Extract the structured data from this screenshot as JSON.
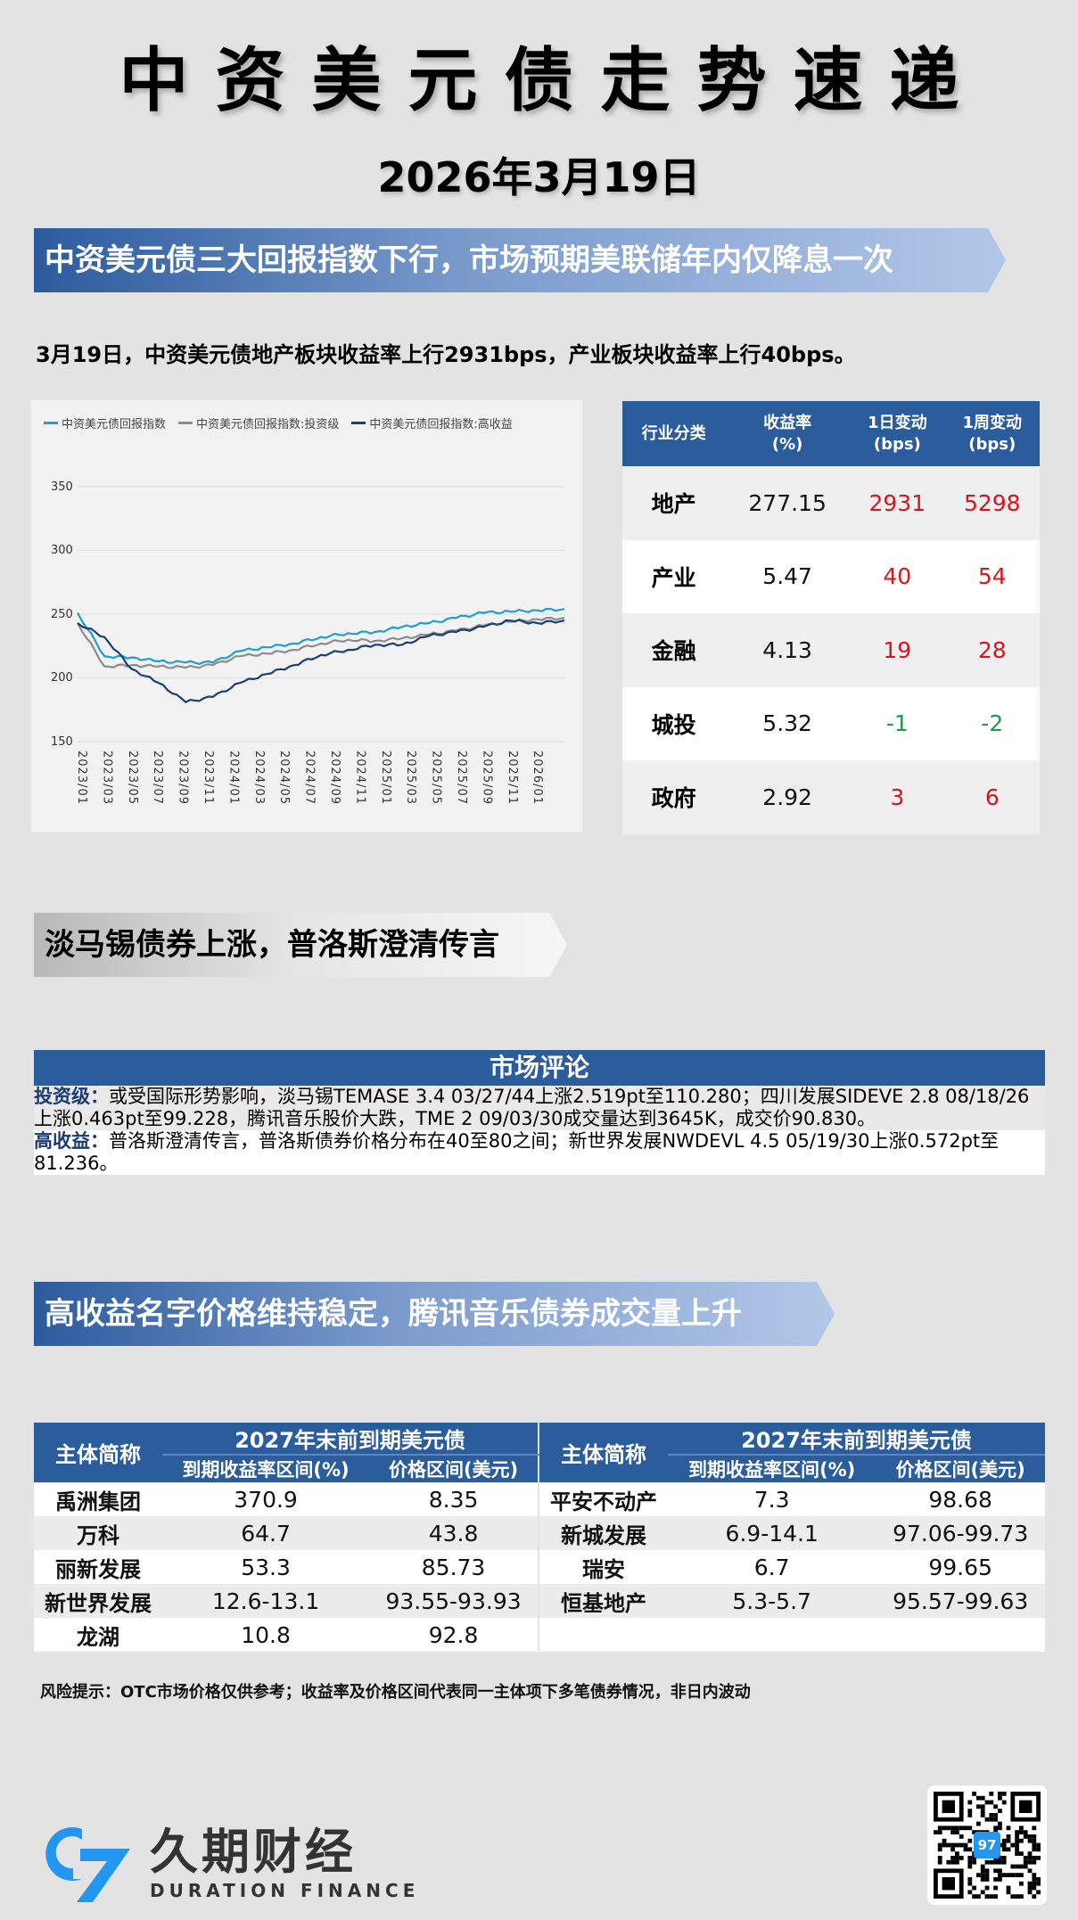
{
  "header": {
    "title": "中资美元债走势速递",
    "date": "2026年3月19日"
  },
  "section1": {
    "banner": "中资美元债三大回报指数下行，市场预期美联储年内仅降息一次",
    "summary": "3月19日，中资美元债地产板块收益率上行2931bps，产业板块收益率上行40bps。"
  },
  "chart_data": {
    "type": "line",
    "title": "",
    "xlabel": "",
    "ylabel": "",
    "ylim": [
      150,
      350
    ],
    "yticks": [
      150,
      200,
      250,
      300,
      350
    ],
    "grid": true,
    "legend_position": "top",
    "x": [
      "2023/01",
      "2023/03",
      "2023/05",
      "2023/07",
      "2023/09",
      "2023/11",
      "2024/01",
      "2024/03",
      "2024/05",
      "2024/07",
      "2024/09",
      "2024/11",
      "2025/01",
      "2025/03",
      "2025/05",
      "2025/07",
      "2025/09",
      "2025/11",
      "2026/01"
    ],
    "series": [
      {
        "name": "中资美元债回报指数",
        "color": "#1f9fd0",
        "values": [
          251,
          217,
          216,
          213,
          212,
          212,
          221,
          224,
          227,
          232,
          235,
          236,
          240,
          243,
          247,
          251,
          252,
          253,
          254
        ]
      },
      {
        "name": "中资美元债回报指数:投资级",
        "color": "#8c8c8c",
        "values": [
          243,
          209,
          210,
          209,
          208,
          210,
          217,
          219,
          222,
          227,
          230,
          229,
          231,
          234,
          237,
          241,
          244,
          246,
          247
        ]
      },
      {
        "name": "中资美元债回报指数:高收益",
        "color": "#1b3f73",
        "values": [
          243,
          232,
          207,
          196,
          181,
          185,
          196,
          203,
          210,
          218,
          222,
          226,
          226,
          233,
          236,
          240,
          245,
          243,
          245
        ]
      }
    ]
  },
  "sector_table": {
    "headers": [
      "行业分类",
      "收益率\n(%)",
      "1日变动\n(bps)",
      "1周变动\n(bps)"
    ],
    "header_lines": [
      [
        "行业分类"
      ],
      [
        "收益率",
        "(%)"
      ],
      [
        "1日变动",
        "(bps)"
      ],
      [
        "1周变动",
        "(bps)"
      ]
    ],
    "rows": [
      {
        "name": "地产",
        "yield": "277.15",
        "d1": "2931",
        "w1": "5298",
        "d1_dir": "pos",
        "w1_dir": "pos"
      },
      {
        "name": "产业",
        "yield": "5.47",
        "d1": "40",
        "w1": "54",
        "d1_dir": "pos",
        "w1_dir": "pos"
      },
      {
        "name": "金融",
        "yield": "4.13",
        "d1": "19",
        "w1": "28",
        "d1_dir": "pos",
        "w1_dir": "pos"
      },
      {
        "name": "城投",
        "yield": "5.32",
        "d1": "-1",
        "w1": "-2",
        "d1_dir": "neg",
        "w1_dir": "neg"
      },
      {
        "name": "政府",
        "yield": "2.92",
        "d1": "3",
        "w1": "6",
        "d1_dir": "pos",
        "w1_dir": "pos"
      }
    ]
  },
  "section2": {
    "banner": "淡马锡债券上涨，普洛斯澄清传言",
    "commentary_title": "市场评论",
    "ig_label": "投资级：",
    "ig_text": "或受国际形势影响，淡马锡TEMASE 3.4 03/27/44上涨2.519pt至110.280；四川发展SIDEVE 2.8 08/18/26上涨0.463pt至99.228，腾讯音乐股价大跌，TME 2 09/03/30成交量达到3645K，成交价90.830。",
    "hy_label": "高收益：",
    "hy_text": "普洛斯澄清传言，普洛斯债券价格分布在40至80之间；新世界发展NWDEVL 4.5 05/19/30上涨0.572pt至81.236。"
  },
  "section3": {
    "banner": "高收益名字价格维持稳定，腾讯音乐债券成交量上升",
    "table_headers": {
      "entity": "主体简称",
      "group": "2027年末前到期美元债",
      "ytm": "到期收益率区间(%)",
      "price": "价格区间(美元)"
    },
    "left_rows": [
      {
        "entity": "禹洲集团",
        "ytm": "370.9",
        "price": "8.35"
      },
      {
        "entity": "万科",
        "ytm": "64.7",
        "price": "43.8"
      },
      {
        "entity": "丽新发展",
        "ytm": "53.3",
        "price": "85.73"
      },
      {
        "entity": "新世界发展",
        "ytm": "12.6-13.1",
        "price": "93.55-93.93"
      },
      {
        "entity": "龙湖",
        "ytm": "10.8",
        "price": "92.8"
      }
    ],
    "right_rows": [
      {
        "entity": "平安不动产",
        "ytm": "7.3",
        "price": "98.68"
      },
      {
        "entity": "新城发展",
        "ytm": "6.9-14.1",
        "price": "97.06-99.73"
      },
      {
        "entity": "瑞安",
        "ytm": "6.7",
        "price": "99.65"
      },
      {
        "entity": "恒基地产",
        "ytm": "5.3-5.7",
        "price": "95.57-99.63"
      },
      {
        "entity": "",
        "ytm": "",
        "price": ""
      }
    ],
    "risk_note": "风险提示：OTC市场价格仅供参考；收益率及价格区间代表同一主体项下多笔债券情况，非日内波动"
  },
  "footer": {
    "brand_cn": "久期财经",
    "brand_en": "DURATION FINANCE",
    "logo_mark": "97",
    "qr_icon": "qr-code-icon"
  },
  "colors": {
    "brand_blue": "#2b5c9b",
    "positive": "#d9141e",
    "negative": "#1a9a4a",
    "logo_blue": "#2296f0"
  }
}
